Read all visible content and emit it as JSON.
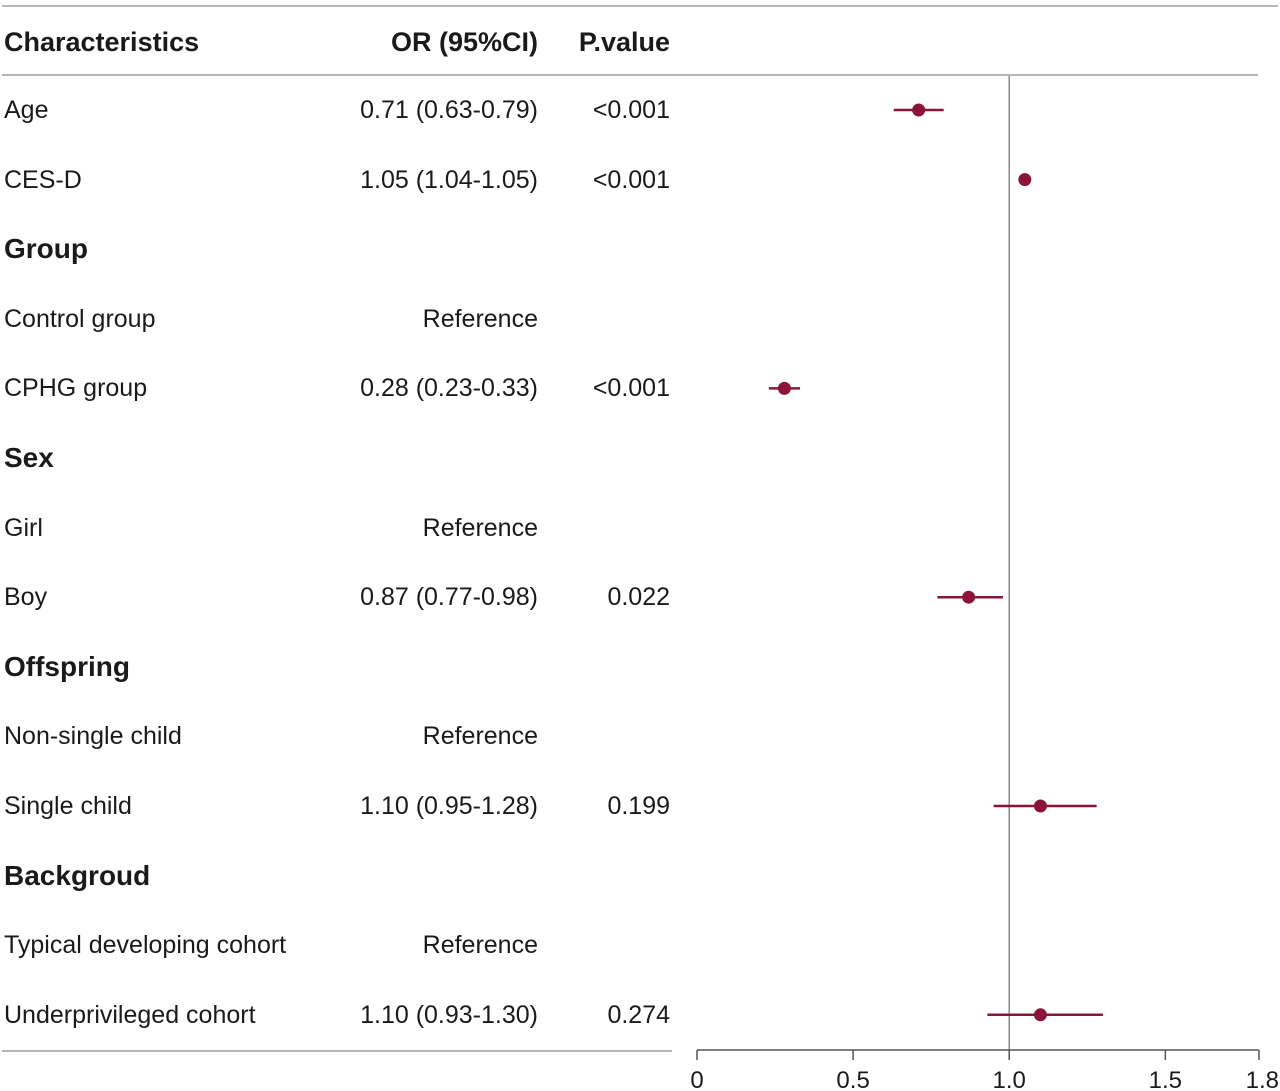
{
  "headers": {
    "characteristics": "Characteristics",
    "or": "OR (95%CI)",
    "p": "P.value"
  },
  "rows": [
    {
      "label": "Age",
      "bold": false,
      "or": "0.71 (0.63-0.79)",
      "p": "<0.001"
    },
    {
      "label": "CES-D",
      "bold": false,
      "or": "1.05 (1.04-1.05)",
      "p": "<0.001"
    },
    {
      "label": "Group",
      "bold": true,
      "or": "",
      "p": ""
    },
    {
      "label": "Control group",
      "bold": false,
      "or": "Reference",
      "p": ""
    },
    {
      "label": "CPHG group",
      "bold": false,
      "or": "0.28 (0.23-0.33)",
      "p": "<0.001"
    },
    {
      "label": "Sex",
      "bold": true,
      "or": "",
      "p": ""
    },
    {
      "label": "Girl",
      "bold": false,
      "or": "Reference",
      "p": ""
    },
    {
      "label": "Boy",
      "bold": false,
      "or": "0.87 (0.77-0.98)",
      "p": "0.022"
    },
    {
      "label": "Offspring",
      "bold": true,
      "or": "",
      "p": ""
    },
    {
      "label": "Non-single child",
      "bold": false,
      "or": "Reference",
      "p": ""
    },
    {
      "label": "Single child",
      "bold": false,
      "or": "1.10 (0.95-1.28)",
      "p": "0.199"
    },
    {
      "label": "Backgroud",
      "bold": true,
      "or": "",
      "p": ""
    },
    {
      "label": "Typical developing cohort",
      "bold": false,
      "or": "Reference",
      "p": ""
    },
    {
      "label": "Underprivileged cohort",
      "bold": false,
      "or": "1.10 (0.93-1.30)",
      "p": "0.274"
    }
  ],
  "chart_data": {
    "type": "forest",
    "reference_line": 1.0,
    "xlim": [
      0,
      1.8
    ],
    "x_ticks": [
      "0",
      "0.5",
      "1.0",
      "1.5",
      "1.8"
    ],
    "x_tick_values": [
      0,
      0.5,
      1.0,
      1.5,
      1.8
    ],
    "marker_color": "#8b1538",
    "points": [
      {
        "row": 0,
        "or": 0.71,
        "lo": 0.63,
        "hi": 0.79
      },
      {
        "row": 1,
        "or": 1.05,
        "lo": 1.04,
        "hi": 1.05
      },
      {
        "row": 4,
        "or": 0.28,
        "lo": 0.23,
        "hi": 0.33
      },
      {
        "row": 7,
        "or": 0.87,
        "lo": 0.77,
        "hi": 0.98
      },
      {
        "row": 10,
        "or": 1.1,
        "lo": 0.95,
        "hi": 1.28
      },
      {
        "row": 13,
        "or": 1.1,
        "lo": 0.93,
        "hi": 1.3
      }
    ]
  }
}
